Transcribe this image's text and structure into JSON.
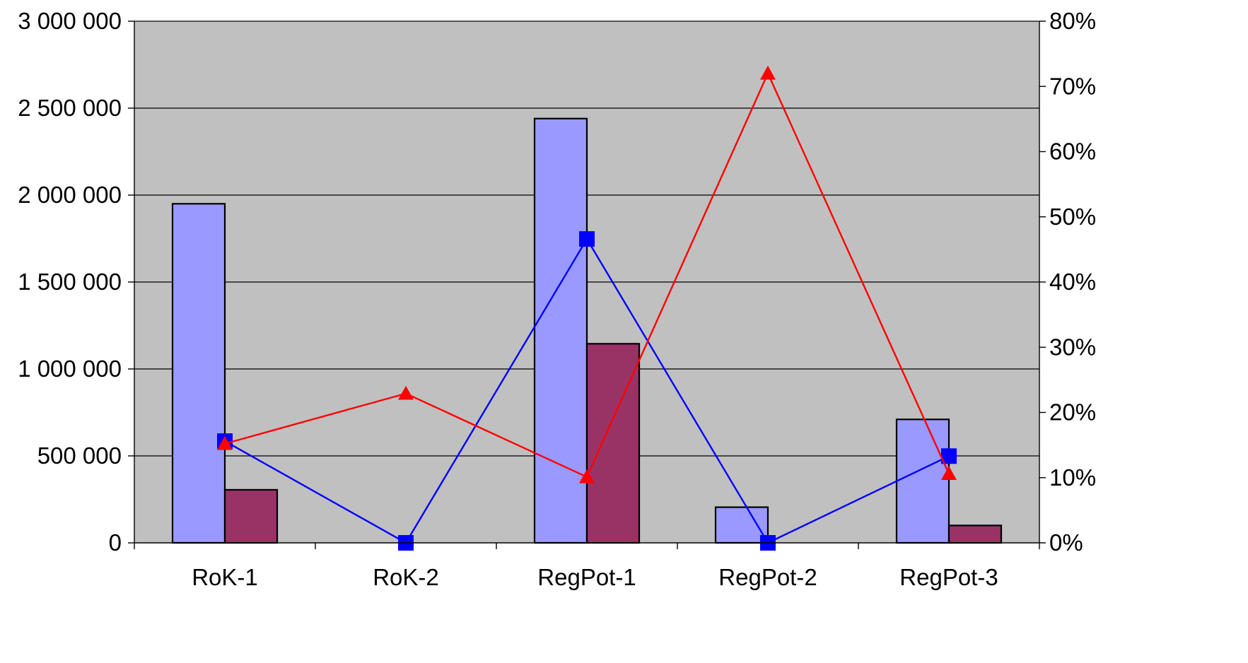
{
  "chart_data": {
    "type": "bar",
    "categories": [
      "RoK-1",
      "RoK-2",
      "RegPot-1",
      "RegPot-2",
      "RegPot-3"
    ],
    "series": [
      {
        "kind": "bar",
        "axis": "left",
        "color": "#9999ff",
        "values": [
          1950000,
          0,
          2440000,
          205000,
          710000
        ]
      },
      {
        "kind": "bar",
        "axis": "left",
        "color": "#993366",
        "values": [
          305000,
          0,
          1145000,
          0,
          100000
        ]
      },
      {
        "kind": "line",
        "axis": "right",
        "color": "#0000ff",
        "marker": "square",
        "values": [
          0.156,
          0.0,
          0.466,
          0.0,
          0.133
        ]
      },
      {
        "kind": "line",
        "axis": "right",
        "color": "#ff0000",
        "marker": "triangle",
        "values": [
          0.152,
          0.229,
          0.101,
          0.72,
          0.106
        ]
      }
    ],
    "y_left": {
      "min": 0,
      "max": 3000000,
      "ticks": [
        0,
        500000,
        1000000,
        1500000,
        2000000,
        2500000,
        3000000
      ],
      "tick_labels": [
        "0",
        "500 000",
        "1 000 000",
        "1 500 000",
        "2 000 000",
        "2 500 000",
        "3 000 000"
      ]
    },
    "y_right": {
      "min": 0,
      "max": 0.8,
      "ticks": [
        0,
        0.1,
        0.2,
        0.3,
        0.4,
        0.5,
        0.6,
        0.7,
        0.8
      ],
      "tick_labels": [
        "0%",
        "10%",
        "20%",
        "30%",
        "40%",
        "50%",
        "60%",
        "70%",
        "80%"
      ]
    },
    "title": "",
    "xlabel": "",
    "ylabel": "",
    "grid": true,
    "legend": "none",
    "plot_background": "#c0c0c0"
  }
}
